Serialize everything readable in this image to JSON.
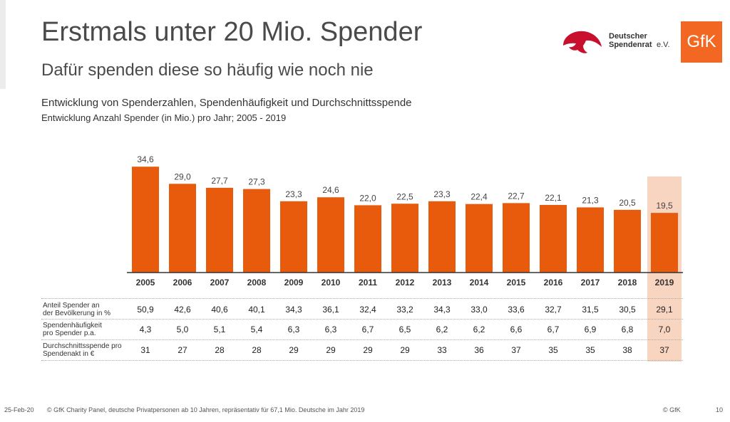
{
  "header": {
    "title": "Erstmals unter 20 Mio. Spender",
    "subtitle": "Dafür spenden diese so häufig wie noch nie"
  },
  "logos": {
    "dsr_line1": "Deutscher",
    "dsr_line2": "Spendenrat",
    "dsr_suffix": "e.V.",
    "gfk": "GfK",
    "colors": {
      "dsr_red": "#c8102e",
      "gfk_orange": "#f26722"
    }
  },
  "chart_data": {
    "type": "bar",
    "title": "Entwicklung von Spenderzahlen, Spendenhäufigkeit und Durchschnittsspende",
    "subtitle": "Entwicklung Anzahl Spender (in Mio.) pro Jahr; 2005 - 2019",
    "categories": [
      "2005",
      "2006",
      "2007",
      "2008",
      "2009",
      "2010",
      "2011",
      "2012",
      "2013",
      "2014",
      "2015",
      "2016",
      "2017",
      "2018",
      "2019"
    ],
    "values": [
      34.6,
      29.0,
      27.7,
      27.3,
      23.3,
      24.6,
      22.0,
      22.5,
      23.3,
      22.4,
      22.7,
      22.1,
      21.3,
      20.5,
      19.5
    ],
    "value_labels": [
      "34,6",
      "29,0",
      "27,7",
      "27,3",
      "23,3",
      "24,6",
      "22,0",
      "22,5",
      "23,3",
      "22,4",
      "22,7",
      "22,1",
      "21,3",
      "20,5",
      "19,5"
    ],
    "highlight_category": "2019",
    "colors": {
      "bar": "#e85a0c",
      "highlight_bg": "#f8d5c0",
      "axis": "#333333"
    },
    "ylim": [
      0,
      40
    ],
    "grid": false,
    "table": {
      "rows": [
        {
          "label_lines": [
            "Anteil Spender an",
            "der Bevölkerung in %"
          ],
          "values": [
            "50,9",
            "42,6",
            "40,6",
            "40,1",
            "34,3",
            "36,1",
            "32,4",
            "33,2",
            "34,3",
            "33,0",
            "33,6",
            "32,7",
            "31,5",
            "30,5",
            "29,1"
          ]
        },
        {
          "label_lines": [
            "Spendenhäufigkeit",
            "pro Spender p.a."
          ],
          "values": [
            "4,3",
            "5,0",
            "5,1",
            "5,4",
            "6,3",
            "6,3",
            "6,7",
            "6,5",
            "6,2",
            "6,2",
            "6,6",
            "6,7",
            "6,9",
            "6,8",
            "7,0"
          ]
        },
        {
          "label_lines": [
            "Durchschnittsspende pro",
            "Spendenakt in €"
          ],
          "values": [
            "31",
            "27",
            "28",
            "28",
            "29",
            "29",
            "29",
            "29",
            "33",
            "36",
            "37",
            "35",
            "35",
            "38",
            "37"
          ]
        }
      ]
    }
  },
  "footer": {
    "date": "25-Feb-20",
    "source": "© GfK Charity Panel, deutsche Privatpersonen ab 10 Jahren, repräsentativ für 67,1 Mio. Deutsche im Jahr 2019",
    "copyright": "© GfK",
    "page": "10"
  }
}
